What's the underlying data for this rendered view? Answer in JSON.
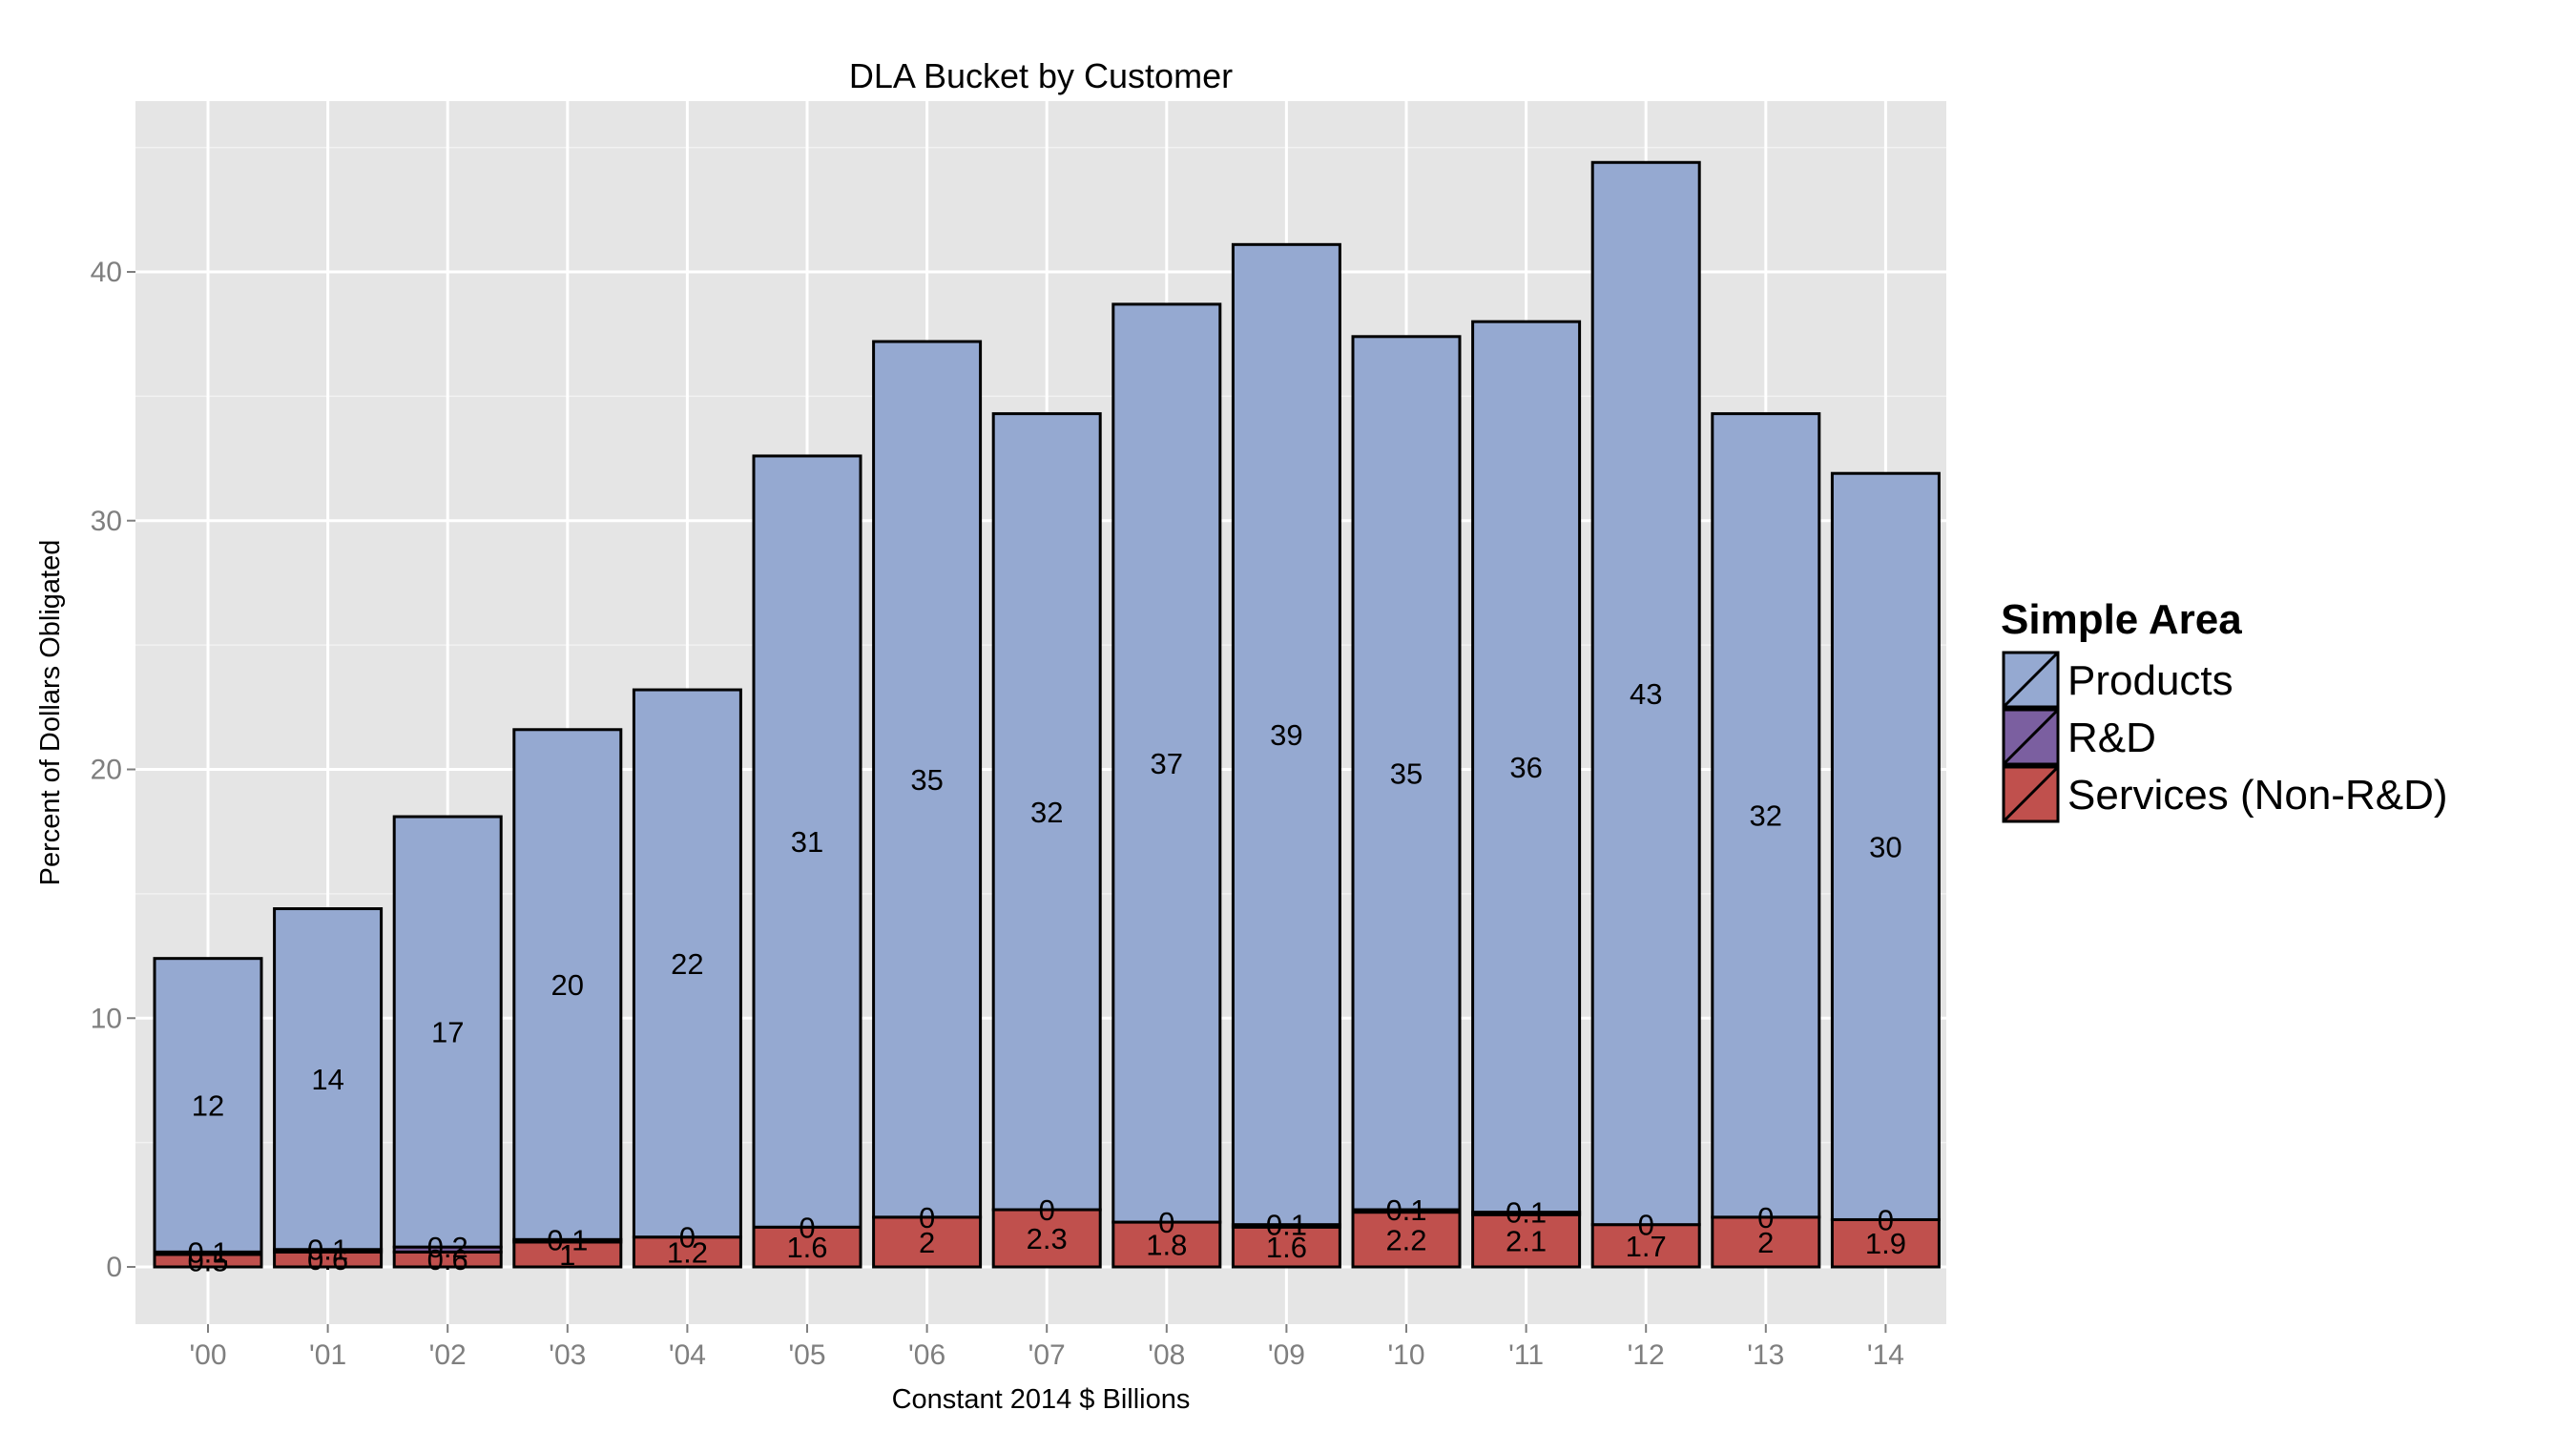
{
  "chart_data": {
    "type": "bar",
    "stacked": true,
    "title": "DLA Bucket by Customer",
    "xlabel": "Constant 2014 $ Billions",
    "ylabel": "Percent of Dollars Obligated",
    "ylim": [
      -2.2,
      46.8
    ],
    "yticks": [
      0,
      10,
      20,
      30,
      40
    ],
    "categories": [
      "'00",
      "'01",
      "'02",
      "'03",
      "'04",
      "'05",
      "'06",
      "'07",
      "'08",
      "'09",
      "'10",
      "'11",
      "'12",
      "'13",
      "'14"
    ],
    "series": [
      {
        "name": "Services (Non-R&D)",
        "color": "#c0504d",
        "values": [
          0.5,
          0.6,
          0.6,
          1.0,
          1.2,
          1.6,
          2.0,
          2.3,
          1.8,
          1.6,
          2.2,
          2.1,
          1.7,
          2.0,
          1.9
        ],
        "labels": [
          "0.5",
          "0.6",
          "0.6",
          "1",
          "1.2",
          "1.6",
          "2",
          "2.3",
          "1.8",
          "1.6",
          "2.2",
          "2.1",
          "1.7",
          "2",
          "1.9"
        ]
      },
      {
        "name": "R&D",
        "color": "#7b5fa0",
        "values": [
          0.1,
          0.1,
          0.2,
          0.1,
          0.0,
          0.0,
          0.0,
          0.0,
          0.0,
          0.1,
          0.1,
          0.1,
          0.0,
          0.0,
          0.0
        ],
        "labels": [
          "0.1",
          "0.1",
          "0.2",
          "0.1",
          "0",
          "0",
          "0",
          "0",
          "0",
          "0.1",
          "0.1",
          "0.1",
          "0",
          "0",
          "0"
        ]
      },
      {
        "name": "Products",
        "color": "#95a9d1",
        "values": [
          11.8,
          13.7,
          17.3,
          20.5,
          22.0,
          31.0,
          35.2,
          32.0,
          36.9,
          39.4,
          35.1,
          35.8,
          42.7,
          32.3,
          30.0
        ],
        "labels": [
          "12",
          "14",
          "17",
          "20",
          "22",
          "31",
          "35",
          "32",
          "37",
          "39",
          "35",
          "36",
          "43",
          "32",
          "30"
        ]
      }
    ],
    "legend": {
      "title": "Simple Area",
      "position": "right",
      "entries": [
        "Products",
        "R&D",
        "Services (Non-R&D)"
      ]
    }
  },
  "colors": {
    "panel_background": "#e5e5e5",
    "gridline": "#ffffff",
    "bar_outline": "#000000"
  }
}
